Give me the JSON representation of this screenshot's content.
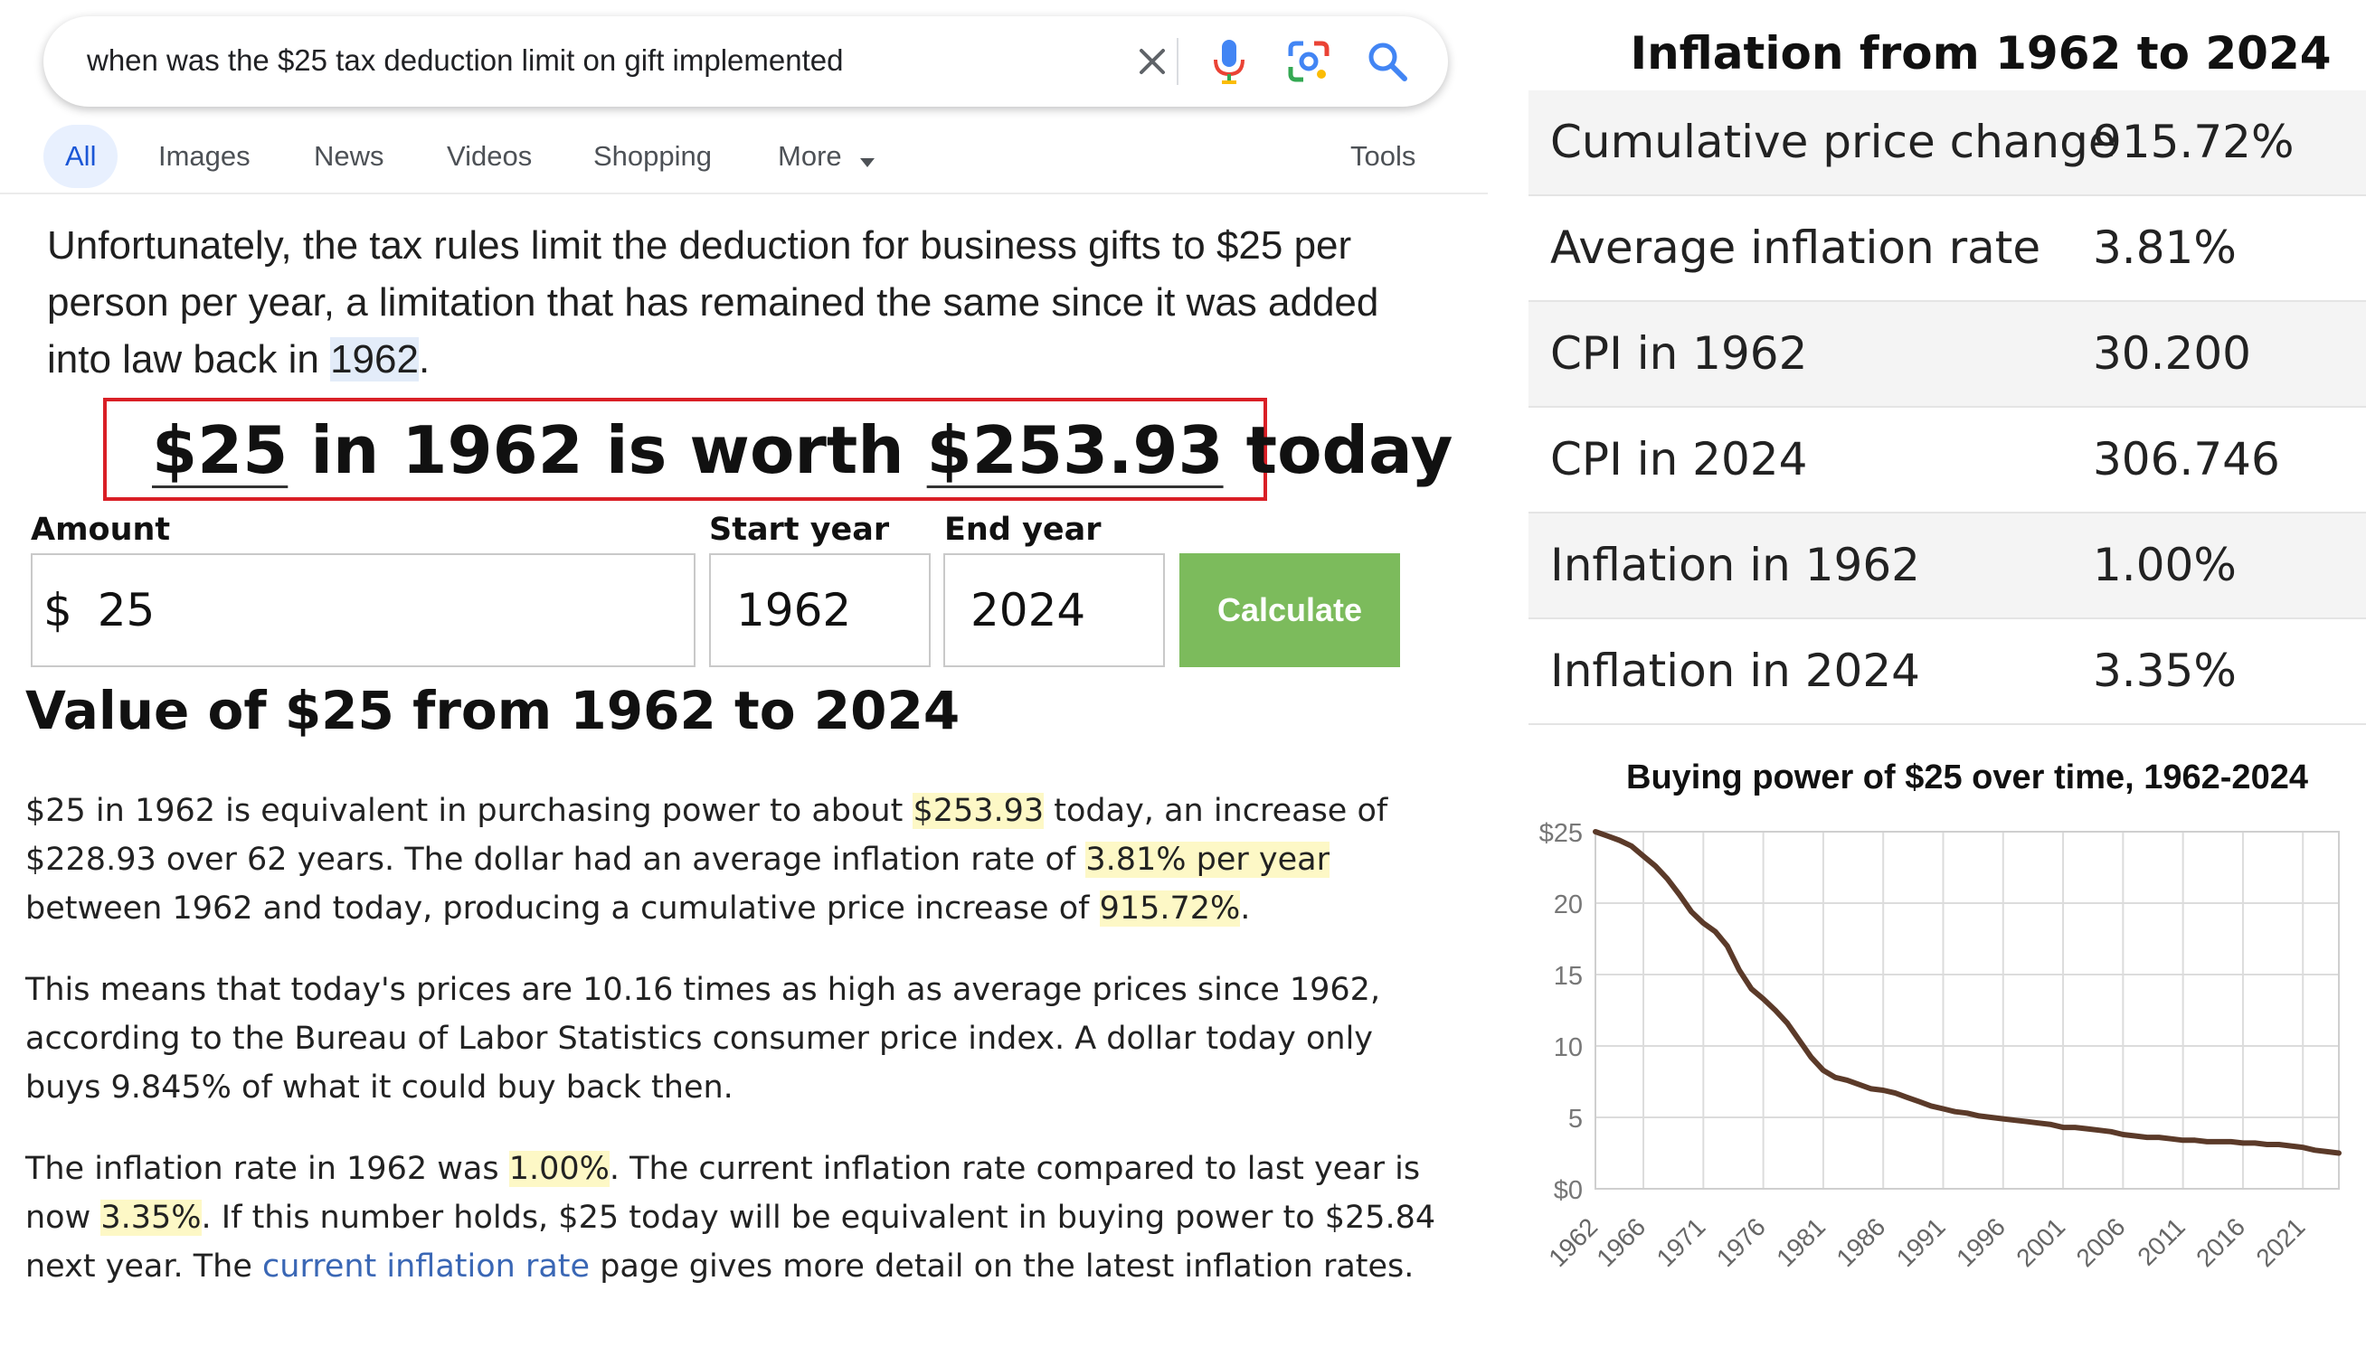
{
  "search": {
    "query": "when was the $25 tax deduction limit on gift implemented"
  },
  "tabs": [
    {
      "label": "All"
    },
    {
      "label": "Images"
    },
    {
      "label": "News"
    },
    {
      "label": "Videos"
    },
    {
      "label": "Shopping"
    },
    {
      "label": "More"
    }
  ],
  "tools_label": "Tools",
  "snippet": {
    "part1": "Unfortunately, the tax rules limit the deduction for business gifts to $25 per person per year, a limitation that has remained the same since it was added into law back in ",
    "year": "1962",
    "part2": "."
  },
  "worth": {
    "amount": "$25",
    "mid": " in 1962 is worth ",
    "value": "$253.93",
    "end": " today"
  },
  "form": {
    "amount_label": "Amount",
    "start_label": "Start year",
    "end_label": "End year",
    "currency": "$",
    "amount_value": "25",
    "start_value": "1962",
    "end_value": "2024",
    "calculate_label": "Calculate"
  },
  "value_heading": "Value of $25 from 1962 to 2024",
  "para1": {
    "a": "$25 in 1962 is equivalent in purchasing power to about ",
    "b": "$253.93",
    "c": " today, an increase of $228.93 over 62 years. The dollar had an average inflation rate of ",
    "d": "3.81% per year",
    "e": " between 1962 and today, producing a cumulative price increase of ",
    "f": "915.72%",
    "g": "."
  },
  "para2": "This means that today's prices are 10.16 times as high as average prices since 1962, according to the Bureau of Labor Statistics consumer price index. A dollar today only buys 9.845% of what it could buy back then.",
  "para3": {
    "a": "The inflation rate in 1962 was ",
    "b": "1.00%",
    "c": ". The current inflation rate compared to last year is now ",
    "d": "3.35%",
    "e": ". If this number holds, $25 today will be equivalent in buying power to $25.84 next year. The ",
    "link": "current inflation rate",
    "f": " page gives more detail on the latest inflation rates."
  },
  "stats": {
    "title": "Inflation from 1962 to 2024",
    "rows": [
      {
        "label": "Cumulative price change",
        "value": "915.72%"
      },
      {
        "label": "Average inflation rate",
        "value": "3.81%"
      },
      {
        "label": "CPI in 1962",
        "value": "30.200"
      },
      {
        "label": "CPI in 2024",
        "value": "306.746"
      },
      {
        "label": "Inflation in 1962",
        "value": "1.00%"
      },
      {
        "label": "Inflation in 2024",
        "value": "3.35%"
      }
    ]
  },
  "colors": {
    "calculate_button": "#7cbb5c",
    "highlight_box": "#d91f26",
    "line": "#5b3a29",
    "link": "#3a67b5"
  },
  "chart_data": {
    "type": "line",
    "title": "Buying power of $25 over time, 1962-2024",
    "xlabel": "",
    "ylabel": "",
    "x_tick_labels": [
      "1962",
      "1966",
      "1971",
      "1976",
      "1981",
      "1986",
      "1991",
      "1996",
      "2001",
      "2006",
      "2011",
      "2016",
      "2021"
    ],
    "y_tick_labels": [
      "$25",
      "20",
      "15",
      "10",
      "5",
      "$0"
    ],
    "ylim": [
      0,
      25
    ],
    "xlim": [
      1962,
      2024
    ],
    "grid": true,
    "series": [
      {
        "x": [
          1962,
          1963,
          1964,
          1965,
          1966,
          1967,
          1968,
          1969,
          1970,
          1971,
          1972,
          1973,
          1974,
          1975,
          1976,
          1977,
          1978,
          1979,
          1980,
          1981,
          1982,
          1983,
          1984,
          1985,
          1986,
          1987,
          1988,
          1989,
          1990,
          1991,
          1992,
          1993,
          1994,
          1995,
          1996,
          1997,
          1998,
          1999,
          2000,
          2001,
          2002,
          2003,
          2004,
          2005,
          2006,
          2007,
          2008,
          2009,
          2010,
          2011,
          2012,
          2013,
          2014,
          2015,
          2016,
          2017,
          2018,
          2019,
          2020,
          2021,
          2022,
          2023,
          2024
        ],
        "values": [
          25.0,
          24.7,
          24.4,
          24.0,
          23.3,
          22.6,
          21.7,
          20.6,
          19.4,
          18.6,
          18.0,
          17.0,
          15.3,
          14.0,
          13.3,
          12.5,
          11.6,
          10.4,
          9.2,
          8.3,
          7.8,
          7.6,
          7.3,
          7.0,
          6.9,
          6.7,
          6.4,
          6.1,
          5.8,
          5.6,
          5.4,
          5.3,
          5.1,
          5.0,
          4.9,
          4.8,
          4.7,
          4.6,
          4.5,
          4.3,
          4.3,
          4.2,
          4.1,
          4.0,
          3.8,
          3.7,
          3.6,
          3.6,
          3.5,
          3.4,
          3.4,
          3.3,
          3.3,
          3.3,
          3.2,
          3.2,
          3.1,
          3.1,
          3.0,
          2.9,
          2.7,
          2.6,
          2.5
        ]
      }
    ]
  }
}
